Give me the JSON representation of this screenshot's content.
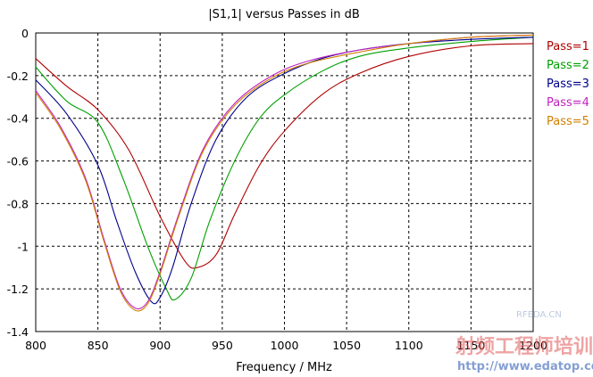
{
  "chart_data": {
    "type": "line",
    "title": "|S1,1| versus Passes in dB",
    "xlabel": "Frequency / MHz",
    "ylabel": "",
    "xlim": [
      800,
      1200
    ],
    "ylim": [
      -1.4,
      0
    ],
    "xticks": [
      "800",
      "850",
      "900",
      "950",
      "1000",
      "1050",
      "1100",
      "1150",
      "1200"
    ],
    "yticks": [
      "0",
      "-0.2",
      "-0.4",
      "-0.6",
      "-0.8",
      "-1",
      "-1.2",
      "-1.4"
    ],
    "grid": true,
    "legend_position": "right",
    "series": [
      {
        "name": "Pass=1",
        "color": "#b00000",
        "x": [
          800,
          825,
          850,
          875,
          900,
          920,
          930,
          945,
          960,
          980,
          1000,
          1030,
          1060,
          1100,
          1150,
          1200
        ],
        "y": [
          -0.12,
          -0.25,
          -0.36,
          -0.55,
          -0.86,
          -1.07,
          -1.1,
          -1.04,
          -0.85,
          -0.62,
          -0.46,
          -0.29,
          -0.19,
          -0.11,
          -0.06,
          -0.05
        ]
      },
      {
        "name": "Pass=2",
        "color": "#00a000",
        "x": [
          800,
          825,
          850,
          870,
          890,
          905,
          912,
          925,
          940,
          960,
          980,
          1000,
          1030,
          1060,
          1100,
          1150,
          1200
        ],
        "y": [
          -0.16,
          -0.32,
          -0.42,
          -0.68,
          -1.0,
          -1.2,
          -1.25,
          -1.15,
          -0.88,
          -0.6,
          -0.4,
          -0.29,
          -0.18,
          -0.11,
          -0.07,
          -0.04,
          -0.02
        ]
      },
      {
        "name": "Pass=3",
        "color": "#00008c",
        "x": [
          800,
          825,
          850,
          865,
          880,
          893,
          900,
          910,
          925,
          945,
          970,
          1000,
          1030,
          1060,
          1100,
          1150,
          1200
        ],
        "y": [
          -0.22,
          -0.38,
          -0.62,
          -0.88,
          -1.12,
          -1.26,
          -1.24,
          -1.1,
          -0.8,
          -0.5,
          -0.3,
          -0.19,
          -0.12,
          -0.08,
          -0.05,
          -0.03,
          -0.02
        ]
      },
      {
        "name": "Pass=4",
        "color": "#c020c0",
        "x": [
          800,
          820,
          840,
          855,
          868,
          880,
          890,
          900,
          915,
          935,
          960,
          990,
          1020,
          1060,
          1100,
          1150,
          1200
        ],
        "y": [
          -0.27,
          -0.44,
          -0.68,
          -0.97,
          -1.2,
          -1.29,
          -1.26,
          -1.12,
          -0.85,
          -0.54,
          -0.33,
          -0.2,
          -0.13,
          -0.08,
          -0.05,
          -0.02,
          -0.01
        ]
      },
      {
        "name": "Pass=5",
        "color": "#d08000",
        "x": [
          800,
          820,
          840,
          855,
          868,
          880,
          890,
          900,
          915,
          935,
          960,
          990,
          1020,
          1060,
          1100,
          1150,
          1200
        ],
        "y": [
          -0.28,
          -0.45,
          -0.69,
          -0.98,
          -1.21,
          -1.3,
          -1.27,
          -1.13,
          -0.86,
          -0.55,
          -0.34,
          -0.21,
          -0.14,
          -0.09,
          -0.05,
          -0.02,
          -0.01
        ]
      }
    ]
  },
  "watermark": {
    "brand": "RFEDA.CN",
    "cn_text": "射频工程师培训",
    "url": "http://www.edatop.com"
  }
}
